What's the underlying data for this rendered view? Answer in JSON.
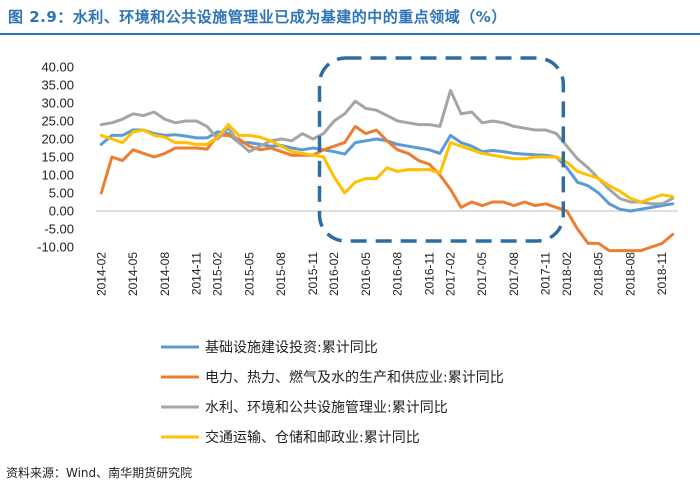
{
  "title": "图 2.9：水利、环境和公共设施管理业已成为基建的中的重点领域（%）",
  "source": "资料来源：Wind、南华期货研究院",
  "chart_data": {
    "type": "line",
    "title": "图 2.9：水利、环境和公共设施管理业已成为基建的中的重点领域（%）",
    "xlabel": "",
    "ylabel": "",
    "ylim": [
      -10,
      40
    ],
    "yticks": [
      "40.00",
      "35.00",
      "30.00",
      "25.00",
      "20.00",
      "15.00",
      "10.00",
      "5.00",
      "0.00",
      "-5.00",
      "-10.00"
    ],
    "grid": false,
    "legend": "bottom",
    "x": [
      "2014-02",
      "2014-03",
      "2014-04",
      "2014-05",
      "2014-06",
      "2014-07",
      "2014-08",
      "2014-09",
      "2014-10",
      "2014-11",
      "2014-12",
      "2015-02",
      "2015-03",
      "2015-04",
      "2015-05",
      "2015-06",
      "2015-07",
      "2015-08",
      "2015-09",
      "2015-10",
      "2015-11",
      "2015-12",
      "2016-02",
      "2016-03",
      "2016-04",
      "2016-05",
      "2016-06",
      "2016-07",
      "2016-08",
      "2016-09",
      "2016-10",
      "2016-11",
      "2016-12",
      "2017-02",
      "2017-03",
      "2017-04",
      "2017-05",
      "2017-06",
      "2017-07",
      "2017-08",
      "2017-09",
      "2017-10",
      "2017-11",
      "2017-12",
      "2018-02",
      "2018-03",
      "2018-04",
      "2018-05",
      "2018-06",
      "2018-07",
      "2018-08",
      "2018-09",
      "2018-10",
      "2018-11",
      "2018-12"
    ],
    "xticks": [
      "2014-02",
      "2014-05",
      "2014-08",
      "2014-11",
      "2015-02",
      "2015-05",
      "2015-08",
      "2015-11",
      "2016-02",
      "2016-05",
      "2016-08",
      "2016-11",
      "2017-02",
      "2017-05",
      "2017-08",
      "2017-11",
      "2018-02",
      "2018-05",
      "2018-08",
      "2018-11"
    ],
    "series": [
      {
        "name": "基础设施建设投资:累计同比",
        "color": "#5b9bd5",
        "values": [
          18.5,
          21.0,
          21.0,
          22.5,
          22.5,
          21.5,
          21.0,
          21.2,
          20.8,
          20.3,
          20.3,
          22.0,
          21.5,
          19.0,
          19.0,
          18.5,
          18.0,
          18.2,
          17.5,
          17.0,
          17.5,
          17.0,
          16.5,
          15.8,
          19.0,
          19.5,
          20.0,
          19.5,
          18.5,
          18.0,
          17.5,
          17.0,
          16.0,
          21.0,
          19.0,
          18.0,
          16.5,
          16.8,
          16.5,
          16.0,
          15.8,
          15.6,
          15.5,
          15.0,
          12.0,
          8.0,
          7.0,
          5.0,
          2.0,
          0.5,
          0.0,
          0.5,
          1.0,
          1.5,
          2.0
        ]
      },
      {
        "name": "电力、热力、燃气及水的生产和供应业:累计同比",
        "color": "#ed7d31",
        "values": [
          5.0,
          15.0,
          14.0,
          17.0,
          16.0,
          15.0,
          16.0,
          17.5,
          17.5,
          17.5,
          17.2,
          21.0,
          21.0,
          20.0,
          18.0,
          17.0,
          17.5,
          16.5,
          15.5,
          15.5,
          15.5,
          17.0,
          18.0,
          19.0,
          23.5,
          21.5,
          22.5,
          19.5,
          17.0,
          16.0,
          14.0,
          13.0,
          10.0,
          6.0,
          1.0,
          2.5,
          1.5,
          2.5,
          2.5,
          1.5,
          2.5,
          1.5,
          2.0,
          1.0,
          0.0,
          -5.0,
          -9.0,
          -9.0,
          -11.0,
          -11.0,
          -11.0,
          -11.0,
          -10.0,
          -9.0,
          -6.5
        ]
      },
      {
        "name": "水利、环境和公共设施管理业:累计同比",
        "color": "#a5a5a5",
        "values": [
          24.0,
          24.5,
          25.5,
          27.0,
          26.5,
          27.5,
          25.5,
          24.5,
          25.0,
          25.0,
          23.5,
          20.0,
          23.0,
          19.0,
          16.5,
          18.0,
          19.5,
          20.0,
          19.5,
          21.5,
          20.0,
          21.5,
          25.0,
          27.0,
          30.5,
          28.5,
          28.0,
          26.5,
          25.0,
          24.5,
          24.0,
          24.0,
          23.5,
          33.5,
          27.0,
          27.5,
          24.5,
          25.0,
          24.5,
          23.5,
          23.0,
          22.5,
          22.5,
          21.5,
          18.0,
          14.5,
          12.0,
          9.0,
          6.0,
          3.5,
          2.5,
          2.5,
          2.0,
          2.0,
          3.5
        ]
      },
      {
        "name": "交通运输、仓储和邮政业:累计同比",
        "color": "#ffc000",
        "values": [
          21.0,
          20.0,
          19.0,
          22.0,
          22.5,
          21.0,
          20.5,
          19.0,
          19.0,
          18.5,
          18.5,
          20.5,
          24.0,
          21.0,
          21.0,
          20.5,
          19.5,
          18.0,
          16.5,
          16.0,
          15.5,
          15.0,
          9.5,
          5.0,
          8.0,
          9.0,
          9.0,
          12.0,
          11.0,
          11.5,
          11.5,
          11.5,
          10.5,
          19.0,
          18.0,
          17.0,
          16.0,
          15.5,
          15.0,
          14.5,
          14.5,
          15.0,
          15.0,
          15.0,
          13.5,
          11.0,
          10.0,
          9.0,
          7.0,
          5.5,
          3.5,
          2.5,
          3.5,
          4.5,
          4.0
        ]
      }
    ],
    "annotations": [
      {
        "type": "dashed-rounded-box",
        "from": "2015-12",
        "to": "2017-12"
      }
    ]
  }
}
